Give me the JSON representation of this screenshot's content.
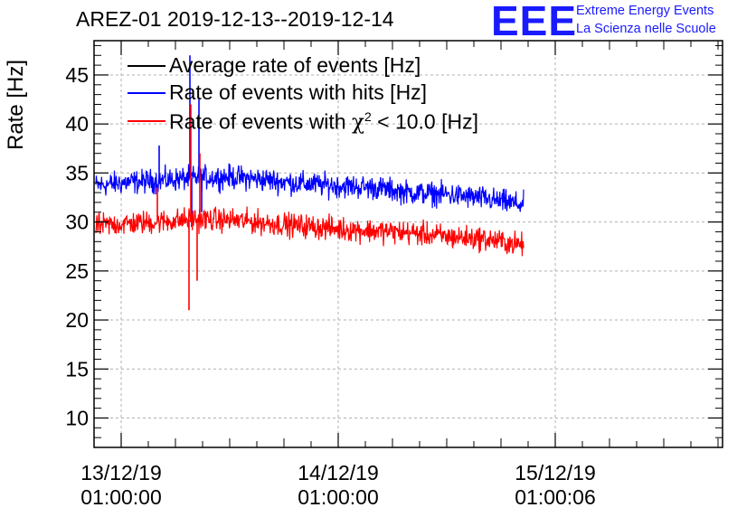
{
  "header": {
    "title": "AREZ-01 2019-12-13--2019-12-14",
    "logo_text": "EEE",
    "logo_line1": "Extreme Energy Events",
    "logo_line2": "La Scienza nelle Scuole"
  },
  "colors": {
    "average": "#000000",
    "hits": "#0000ff",
    "chi2": "#ff0000",
    "grid": "#b0b0b0",
    "logo": "#1a1aff"
  },
  "chart_data": {
    "type": "line",
    "title": "AREZ-01 2019-12-13--2019-12-14",
    "xlabel": "",
    "ylabel": "Rate [Hz]",
    "ylim": [
      7,
      48.5
    ],
    "xlim_hours": [
      -3,
      66.5
    ],
    "x_unit": "hours since 13/12/19 01:00:00",
    "y_ticks": [
      10,
      15,
      20,
      25,
      30,
      35,
      40,
      45
    ],
    "x_ticks": [
      {
        "hours": 0,
        "label_date": "13/12/19",
        "label_time": "01:00:00"
      },
      {
        "hours": 24,
        "label_date": "14/12/19",
        "label_time": "01:00:00"
      },
      {
        "hours": 48,
        "label_date": "15/12/19",
        "label_time": "01:00:06"
      }
    ],
    "grid": true,
    "legend_position": "top-left",
    "legend": [
      {
        "label": "Average rate of events [Hz]",
        "key": "average"
      },
      {
        "label": "Rate of events with hits [Hz]",
        "key": "hits"
      },
      {
        "label_prefix": "Rate of events with ",
        "label_symbol": "χ",
        "label_sup": "2",
        "label_suffix": " < 10.0 [Hz]",
        "key": "chi2"
      }
    ],
    "series": [
      {
        "name": "Rate of events with hits [Hz]",
        "color_key": "hits",
        "x": [
          -2.8,
          0,
          4,
          8,
          12,
          16,
          20,
          24,
          28,
          32,
          36,
          40,
          44,
          44.5
        ],
        "y": [
          33.7,
          34.0,
          34.2,
          34.5,
          34.6,
          34.3,
          33.9,
          33.7,
          33.5,
          33.0,
          32.8,
          32.4,
          31.8,
          31.8
        ],
        "noise": 1.0,
        "spikes": [
          {
            "x": 7.6,
            "y": 47.0
          },
          {
            "x": 7.8,
            "y": 29.5
          },
          {
            "x": 8.6,
            "y": 42.5
          },
          {
            "x": 8.9,
            "y": 31.0
          },
          {
            "x": 4.2,
            "y": 37.8
          }
        ]
      },
      {
        "name": "Rate of events with χ2 < 10.0 [Hz]",
        "color_key": "chi2",
        "x": [
          -2.8,
          0,
          4,
          8,
          12,
          16,
          20,
          24,
          28,
          32,
          36,
          40,
          44,
          44.5
        ],
        "y": [
          29.6,
          29.8,
          30.0,
          30.3,
          30.2,
          29.9,
          29.6,
          29.3,
          29.1,
          28.9,
          28.5,
          28.3,
          27.7,
          27.7
        ],
        "noise": 1.0,
        "spikes": [
          {
            "x": 7.5,
            "y": 21.0
          },
          {
            "x": 7.7,
            "y": 42.0
          },
          {
            "x": 8.4,
            "y": 24.0
          },
          {
            "x": 8.7,
            "y": 37.0
          },
          {
            "x": 4.0,
            "y": 33.5
          }
        ]
      },
      {
        "name": "Average rate of events [Hz]",
        "color_key": "average",
        "x": [],
        "y": []
      }
    ]
  }
}
